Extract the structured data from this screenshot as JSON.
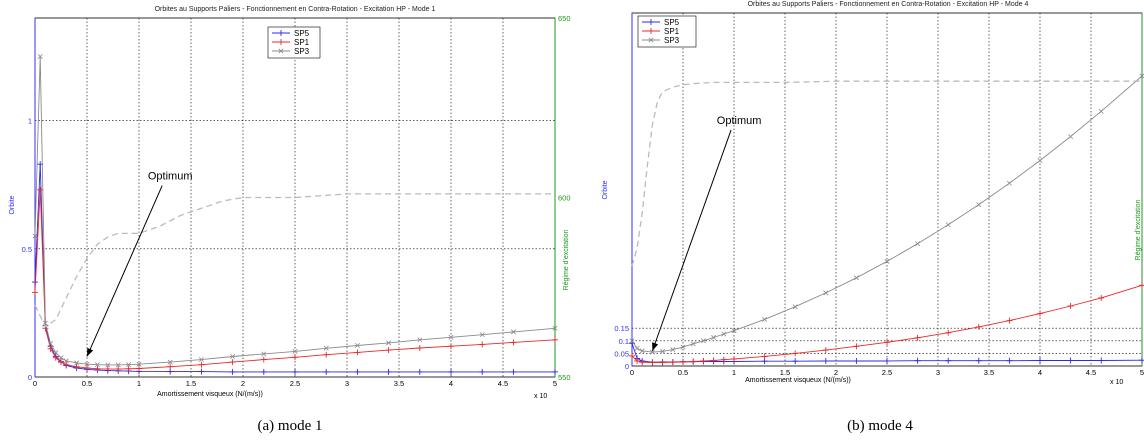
{
  "charts": [
    {
      "id": "a",
      "caption": "(a)  mode 1",
      "chart_data": {
        "type": "line",
        "title": "Orbites au Supports Paliers - Fonctionnement en Contra-Rotation - Excitation HP - Mode 1",
        "xlabel": "Amortissement visqueux (N/(m/s))",
        "x_exponent_label": "x 10",
        "ylabel_left": "Orbite",
        "ylabel_right": "Régime d'excitation",
        "xlim": [
          0,
          5
        ],
        "ylim_left": [
          0,
          1.4
        ],
        "ylim_right": [
          550,
          650
        ],
        "x_ticks": [
          "0",
          "0.5",
          "1",
          "1.5",
          "2",
          "2.5",
          "3",
          "3.5",
          "4",
          "4.5",
          "5"
        ],
        "y_left_ticks": [
          "0",
          "0.5",
          "1"
        ],
        "y_left_tick_values": [
          0,
          0.5,
          1
        ],
        "y_right_ticks": [
          "550",
          "600",
          "650"
        ],
        "y_right_tick_values": [
          550,
          600,
          650
        ],
        "grid": true,
        "legend_position": "top-center",
        "series": [
          {
            "name": "SP5",
            "color": "#2a2ae8",
            "marker": "plus",
            "x": [
              0,
              0.05,
              0.1,
              0.15,
              0.2,
              0.25,
              0.3,
              0.4,
              0.5,
              0.6,
              0.7,
              0.8,
              0.9,
              1.0,
              1.3,
              1.6,
              1.9,
              2.2,
              2.5,
              2.8,
              3.1,
              3.4,
              3.7,
              4.0,
              4.3,
              4.6,
              5.0
            ],
            "y": [
              0.37,
              0.83,
              0.2,
              0.12,
              0.08,
              0.06,
              0.045,
              0.035,
              0.03,
              0.027,
              0.025,
              0.024,
              0.023,
              0.022,
              0.021,
              0.021,
              0.02,
              0.02,
              0.02,
              0.02,
              0.02,
              0.02,
              0.02,
              0.02,
              0.02,
              0.02,
              0.02
            ]
          },
          {
            "name": "SP1",
            "color": "#e82a2a",
            "marker": "plus",
            "x": [
              0,
              0.05,
              0.1,
              0.15,
              0.2,
              0.25,
              0.3,
              0.4,
              0.5,
              0.6,
              0.7,
              0.8,
              0.9,
              1.0,
              1.3,
              1.6,
              1.9,
              2.2,
              2.5,
              2.8,
              3.1,
              3.4,
              3.7,
              4.0,
              4.3,
              4.6,
              5.0
            ],
            "y": [
              0.33,
              0.73,
              0.19,
              0.11,
              0.075,
              0.058,
              0.048,
              0.04,
              0.035,
              0.032,
              0.031,
              0.031,
              0.032,
              0.033,
              0.04,
              0.048,
              0.058,
              0.068,
              0.077,
              0.087,
              0.096,
              0.105,
              0.113,
              0.12,
              0.127,
              0.135,
              0.145
            ]
          },
          {
            "name": "SP3",
            "color": "#8a8a8a",
            "marker": "x",
            "x": [
              0,
              0.05,
              0.1,
              0.15,
              0.2,
              0.25,
              0.3,
              0.4,
              0.5,
              0.6,
              0.7,
              0.8,
              0.9,
              1.0,
              1.3,
              1.6,
              1.9,
              2.2,
              2.5,
              2.8,
              3.1,
              3.4,
              3.7,
              4.0,
              4.3,
              4.6,
              5.0
            ],
            "y": [
              0.55,
              1.25,
              0.21,
              0.13,
              0.095,
              0.075,
              0.063,
              0.055,
              0.05,
              0.048,
              0.047,
              0.047,
              0.048,
              0.05,
              0.058,
              0.068,
              0.08,
              0.09,
              0.1,
              0.112,
              0.123,
              0.133,
              0.145,
              0.155,
              0.165,
              0.176,
              0.19
            ]
          },
          {
            "name": "",
            "color": "#bbbbbb",
            "style": "dashed",
            "axis": "right",
            "x": [
              0,
              0.1,
              0.2,
              0.3,
              0.4,
              0.5,
              0.6,
              0.7,
              0.8,
              0.9,
              1.0,
              1.2,
              1.4,
              1.6,
              1.8,
              2.0,
              2.5,
              3.0,
              3.5,
              4.0,
              4.5,
              5.0
            ],
            "y": [
              570,
              564,
              566,
              572,
              578,
              583,
              587,
              589,
              590,
              590,
              590,
              592,
              595,
              597,
              599,
              600,
              600,
              601,
              601,
              601,
              601,
              601
            ]
          }
        ],
        "annotations": [
          {
            "text": "Optimum",
            "text_x": 1.3,
            "text_y": 0.77,
            "arrow_to_x": 0.5,
            "arrow_to_y": 0.08
          }
        ]
      }
    },
    {
      "id": "b",
      "caption": "(b)  mode 4",
      "chart_data": {
        "type": "line",
        "title": "Orbites au Supports Paliers - Fonctionnement en Contra-Rotation - Excitation HP - Mode 4",
        "xlabel": "Amortissement visqueux (N/(m/s))",
        "x_exponent_label": "x 10",
        "ylabel_left": "Orbite",
        "ylabel_right": "Régime d'excitation",
        "xlim": [
          0,
          5
        ],
        "ylim_left": [
          0,
          1.4
        ],
        "ylim_right": [
          1400,
          1700
        ],
        "x_ticks": [
          "0",
          "0.5",
          "1",
          "1.5",
          "2",
          "2.5",
          "3",
          "3.5",
          "4",
          "4.5",
          "5"
        ],
        "y_left_ticks": [
          "0",
          "0.05",
          "0.1",
          "0.15"
        ],
        "y_left_tick_values": [
          0,
          0.05,
          0.1,
          0.15
        ],
        "y_right_ticks": [
          "1400",
          "1500",
          "1600",
          "1700"
        ],
        "y_right_tick_values": [
          1400,
          1500,
          1600,
          1700
        ],
        "grid": true,
        "legend_position": "top-left",
        "series": [
          {
            "name": "SP5",
            "color": "#2a2ae8",
            "marker": "plus",
            "x": [
              0,
              0.05,
              0.1,
              0.2,
              0.3,
              0.4,
              0.5,
              0.6,
              0.7,
              0.8,
              0.9,
              1.0,
              1.3,
              1.6,
              1.9,
              2.2,
              2.5,
              2.8,
              3.1,
              3.4,
              3.7,
              4.0,
              4.3,
              4.6,
              5.0
            ],
            "y": [
              0.09,
              0.03,
              0.02,
              0.015,
              0.016,
              0.016,
              0.017,
              0.017,
              0.018,
              0.018,
              0.018,
              0.018,
              0.019,
              0.019,
              0.02,
              0.02,
              0.02,
              0.021,
              0.021,
              0.021,
              0.021,
              0.022,
              0.022,
              0.022,
              0.023
            ]
          },
          {
            "name": "SP1",
            "color": "#e82a2a",
            "marker": "plus",
            "x": [
              0,
              0.05,
              0.1,
              0.2,
              0.3,
              0.4,
              0.5,
              0.6,
              0.7,
              0.8,
              0.9,
              1.0,
              1.3,
              1.6,
              1.9,
              2.2,
              2.5,
              2.8,
              3.1,
              3.4,
              3.7,
              4.0,
              4.3,
              4.6,
              5.0
            ],
            "y": [
              0.04,
              0.02,
              0.015,
              0.014,
              0.014,
              0.015,
              0.016,
              0.018,
              0.02,
              0.022,
              0.025,
              0.028,
              0.038,
              0.05,
              0.063,
              0.078,
              0.094,
              0.112,
              0.132,
              0.155,
              0.18,
              0.208,
              0.238,
              0.27,
              0.32
            ]
          },
          {
            "name": "SP3",
            "color": "#8a8a8a",
            "marker": "x",
            "x": [
              0,
              0.05,
              0.1,
              0.2,
              0.3,
              0.4,
              0.5,
              0.6,
              0.7,
              0.8,
              0.9,
              1.0,
              1.3,
              1.6,
              1.9,
              2.2,
              2.5,
              2.8,
              3.1,
              3.4,
              3.7,
              4.0,
              4.3,
              4.6,
              5.0
            ],
            "y": [
              0.1,
              0.07,
              0.06,
              0.055,
              0.058,
              0.065,
              0.075,
              0.088,
              0.1,
              0.113,
              0.127,
              0.14,
              0.185,
              0.235,
              0.29,
              0.35,
              0.415,
              0.485,
              0.56,
              0.64,
              0.725,
              0.815,
              0.91,
              1.01,
              1.15
            ]
          },
          {
            "name": "",
            "color": "#bbbbbb",
            "style": "dashed",
            "axis": "right",
            "x": [
              0,
              0.05,
              0.1,
              0.15,
              0.2,
              0.25,
              0.3,
              0.4,
              0.5,
              0.6,
              0.8,
              1.0,
              1.5,
              2.0,
              3.0,
              4.0,
              5.0
            ],
            "y": [
              1485,
              1500,
              1530,
              1570,
              1605,
              1625,
              1633,
              1637,
              1639,
              1640,
              1641,
              1641,
              1641,
              1642,
              1642,
              1642,
              1642
            ]
          }
        ],
        "annotations": [
          {
            "text": "Optimum",
            "text_x": 1.05,
            "text_y": 0.96,
            "arrow_to_x": 0.2,
            "arrow_to_y": 0.06
          }
        ]
      }
    }
  ]
}
